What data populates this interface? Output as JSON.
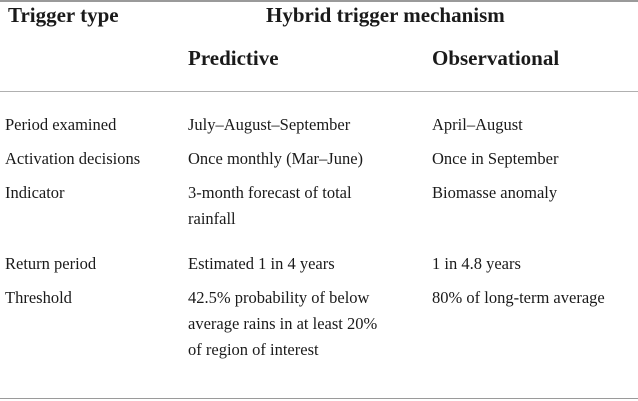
{
  "headers": {
    "trigger_type": "Trigger type",
    "hybrid": "Hybrid trigger mechanism",
    "predictive": "Predictive",
    "observational": "Observational"
  },
  "rows": [
    {
      "label": "Period examined",
      "predictive": [
        "July–August–September"
      ],
      "observational": [
        "April–August"
      ]
    },
    {
      "label": "Activation decisions",
      "predictive": [
        "Once monthly (Mar–June)"
      ],
      "observational": [
        "Once in September"
      ]
    },
    {
      "label": "Indicator",
      "predictive": [
        "3-month forecast of total",
        "rainfall"
      ],
      "observational": [
        "Biomasse anomaly"
      ]
    },
    {
      "label": "Return period",
      "predictive": [
        "Estimated 1 in 4 years"
      ],
      "observational": [
        "1 in 4.8 years"
      ]
    },
    {
      "label": "Threshold",
      "predictive": [
        "42.5% probability of below",
        "average rains in at least 20%",
        "of region of interest"
      ],
      "observational": [
        "80% of long-term average"
      ]
    }
  ]
}
